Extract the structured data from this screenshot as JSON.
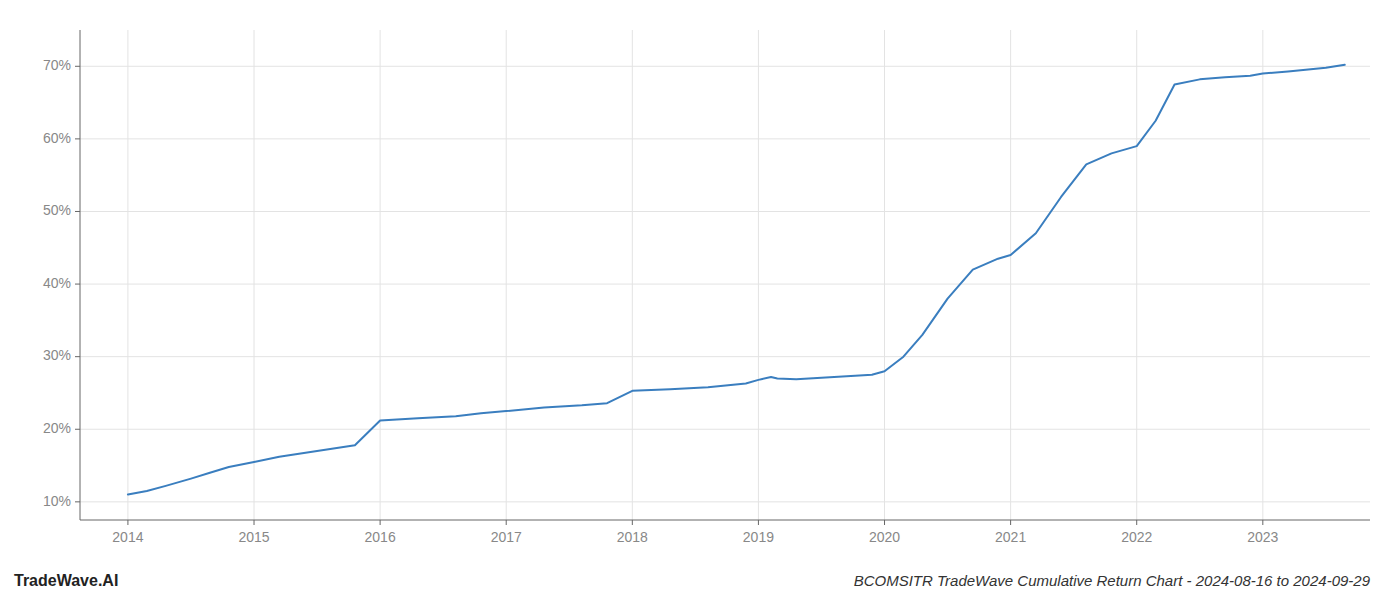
{
  "chart_data": {
    "type": "line",
    "title": "BCOMSITR TradeWave Cumulative Return Chart - 2024-08-16 to 2024-09-29",
    "annotations": [
      "TradeWave.AI"
    ],
    "color": "#3a7ebf",
    "grid": true,
    "x": [
      2014.0,
      2014.15,
      2014.3,
      2014.5,
      2014.65,
      2014.8,
      2015.0,
      2015.2,
      2015.5,
      2015.8,
      2016.0,
      2016.3,
      2016.6,
      2016.8,
      2017.0,
      2017.3,
      2017.6,
      2017.8,
      2018.0,
      2018.3,
      2018.6,
      2018.9,
      2019.0,
      2019.1,
      2019.15,
      2019.3,
      2019.5,
      2019.7,
      2019.9,
      2020.0,
      2020.15,
      2020.3,
      2020.5,
      2020.7,
      2020.9,
      2021.0,
      2021.2,
      2021.4,
      2021.6,
      2021.8,
      2022.0,
      2022.15,
      2022.3,
      2022.5,
      2022.7,
      2022.9,
      2023.0,
      2023.2,
      2023.5,
      2023.65
    ],
    "values": [
      11.0,
      11.5,
      12.2,
      13.2,
      14.0,
      14.8,
      15.5,
      16.2,
      17.0,
      17.8,
      21.2,
      21.5,
      21.8,
      22.2,
      22.5,
      23.0,
      23.3,
      23.6,
      25.3,
      25.5,
      25.8,
      26.3,
      26.8,
      27.2,
      27.0,
      26.9,
      27.1,
      27.3,
      27.5,
      28.0,
      30.0,
      33.0,
      38.0,
      42.0,
      43.5,
      44.0,
      47.0,
      52.0,
      56.5,
      58.0,
      59.0,
      62.5,
      67.5,
      68.2,
      68.5,
      68.7,
      69.0,
      69.3,
      69.8,
      70.2
    ],
    "xlim": [
      2013.62,
      2023.85
    ],
    "ylim": [
      7.5,
      75
    ],
    "xticks": [
      2014,
      2015,
      2016,
      2017,
      2018,
      2019,
      2020,
      2021,
      2022,
      2023
    ],
    "yticks": [
      {
        "value": 10,
        "label": "10%"
      },
      {
        "value": 20,
        "label": "20%"
      },
      {
        "value": 30,
        "label": "30%"
      },
      {
        "value": 40,
        "label": "40%"
      },
      {
        "value": 50,
        "label": "50%"
      },
      {
        "value": 60,
        "label": "60%"
      },
      {
        "value": 70,
        "label": "70%"
      }
    ]
  }
}
